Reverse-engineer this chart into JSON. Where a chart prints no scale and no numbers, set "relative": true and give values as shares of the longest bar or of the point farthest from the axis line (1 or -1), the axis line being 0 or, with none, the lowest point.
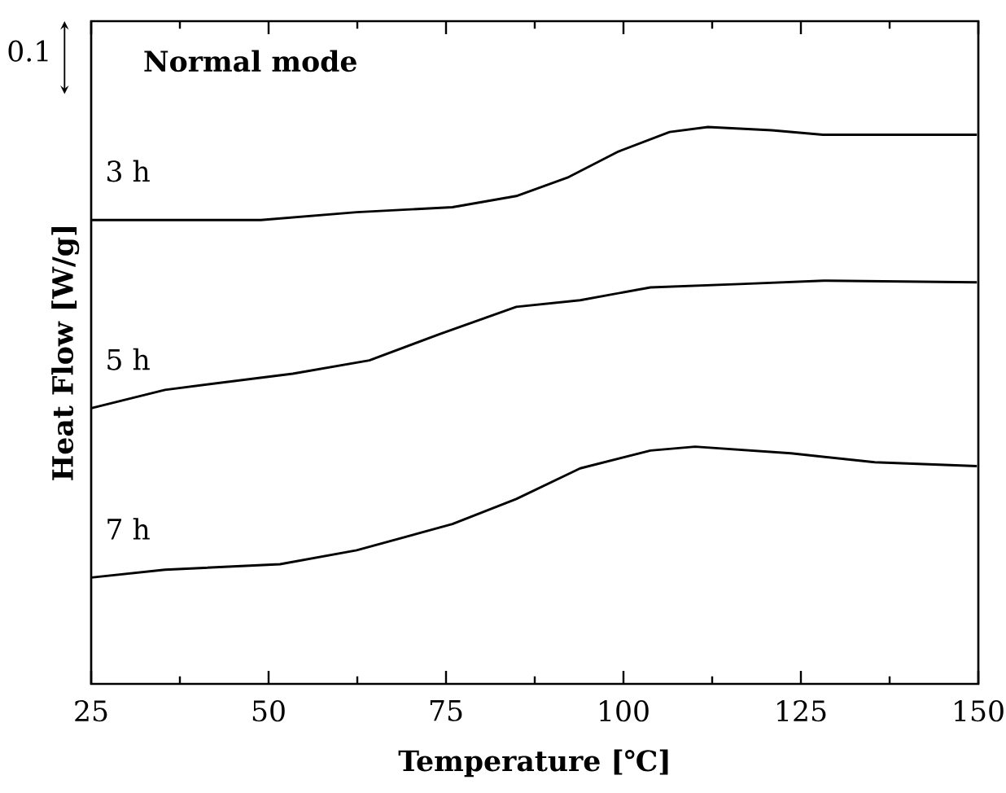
{
  "chart_data": {
    "type": "line",
    "relative": true,
    "xlabel": "Temperature [℃]",
    "ylabel": "Heat Flow [W/g]",
    "annotations": [
      "Normal mode",
      "0.1"
    ],
    "xlim": [
      25,
      150
    ],
    "xticks": [
      25,
      50,
      75,
      100,
      125,
      150
    ],
    "grid": false,
    "marker": "none",
    "line_style": "solid",
    "series": [
      {
        "name": "3 h",
        "color": "#000000",
        "x": [
          25,
          48.9,
          62.4,
          75.9,
          84.9,
          92.1,
          99.3,
          106.5,
          111.9,
          120.9,
          128.1,
          149.8
        ],
        "values": [
          0.833,
          0.833,
          0.847,
          0.856,
          0.876,
          0.909,
          0.956,
          0.991,
          1,
          0.994,
          0.986,
          0.986
        ]
      },
      {
        "name": "5 h",
        "color": "#000000",
        "x": [
          25,
          35.4,
          53.4,
          64.2,
          74.1,
          84.9,
          93.9,
          103.8,
          116.4,
          128.2,
          149.8
        ],
        "values": [
          0.495,
          0.528,
          0.557,
          0.581,
          0.628,
          0.677,
          0.689,
          0.712,
          0.718,
          0.724,
          0.721
        ]
      },
      {
        "name": "7 h",
        "color": "#000000",
        "x": [
          25,
          35.4,
          51.6,
          62.4,
          75.9,
          84.9,
          93.9,
          103.8,
          110.1,
          123.6,
          135.4,
          149.8
        ],
        "values": [
          0.191,
          0.205,
          0.215,
          0.24,
          0.287,
          0.332,
          0.387,
          0.419,
          0.426,
          0.414,
          0.398,
          0.391
        ]
      }
    ]
  }
}
